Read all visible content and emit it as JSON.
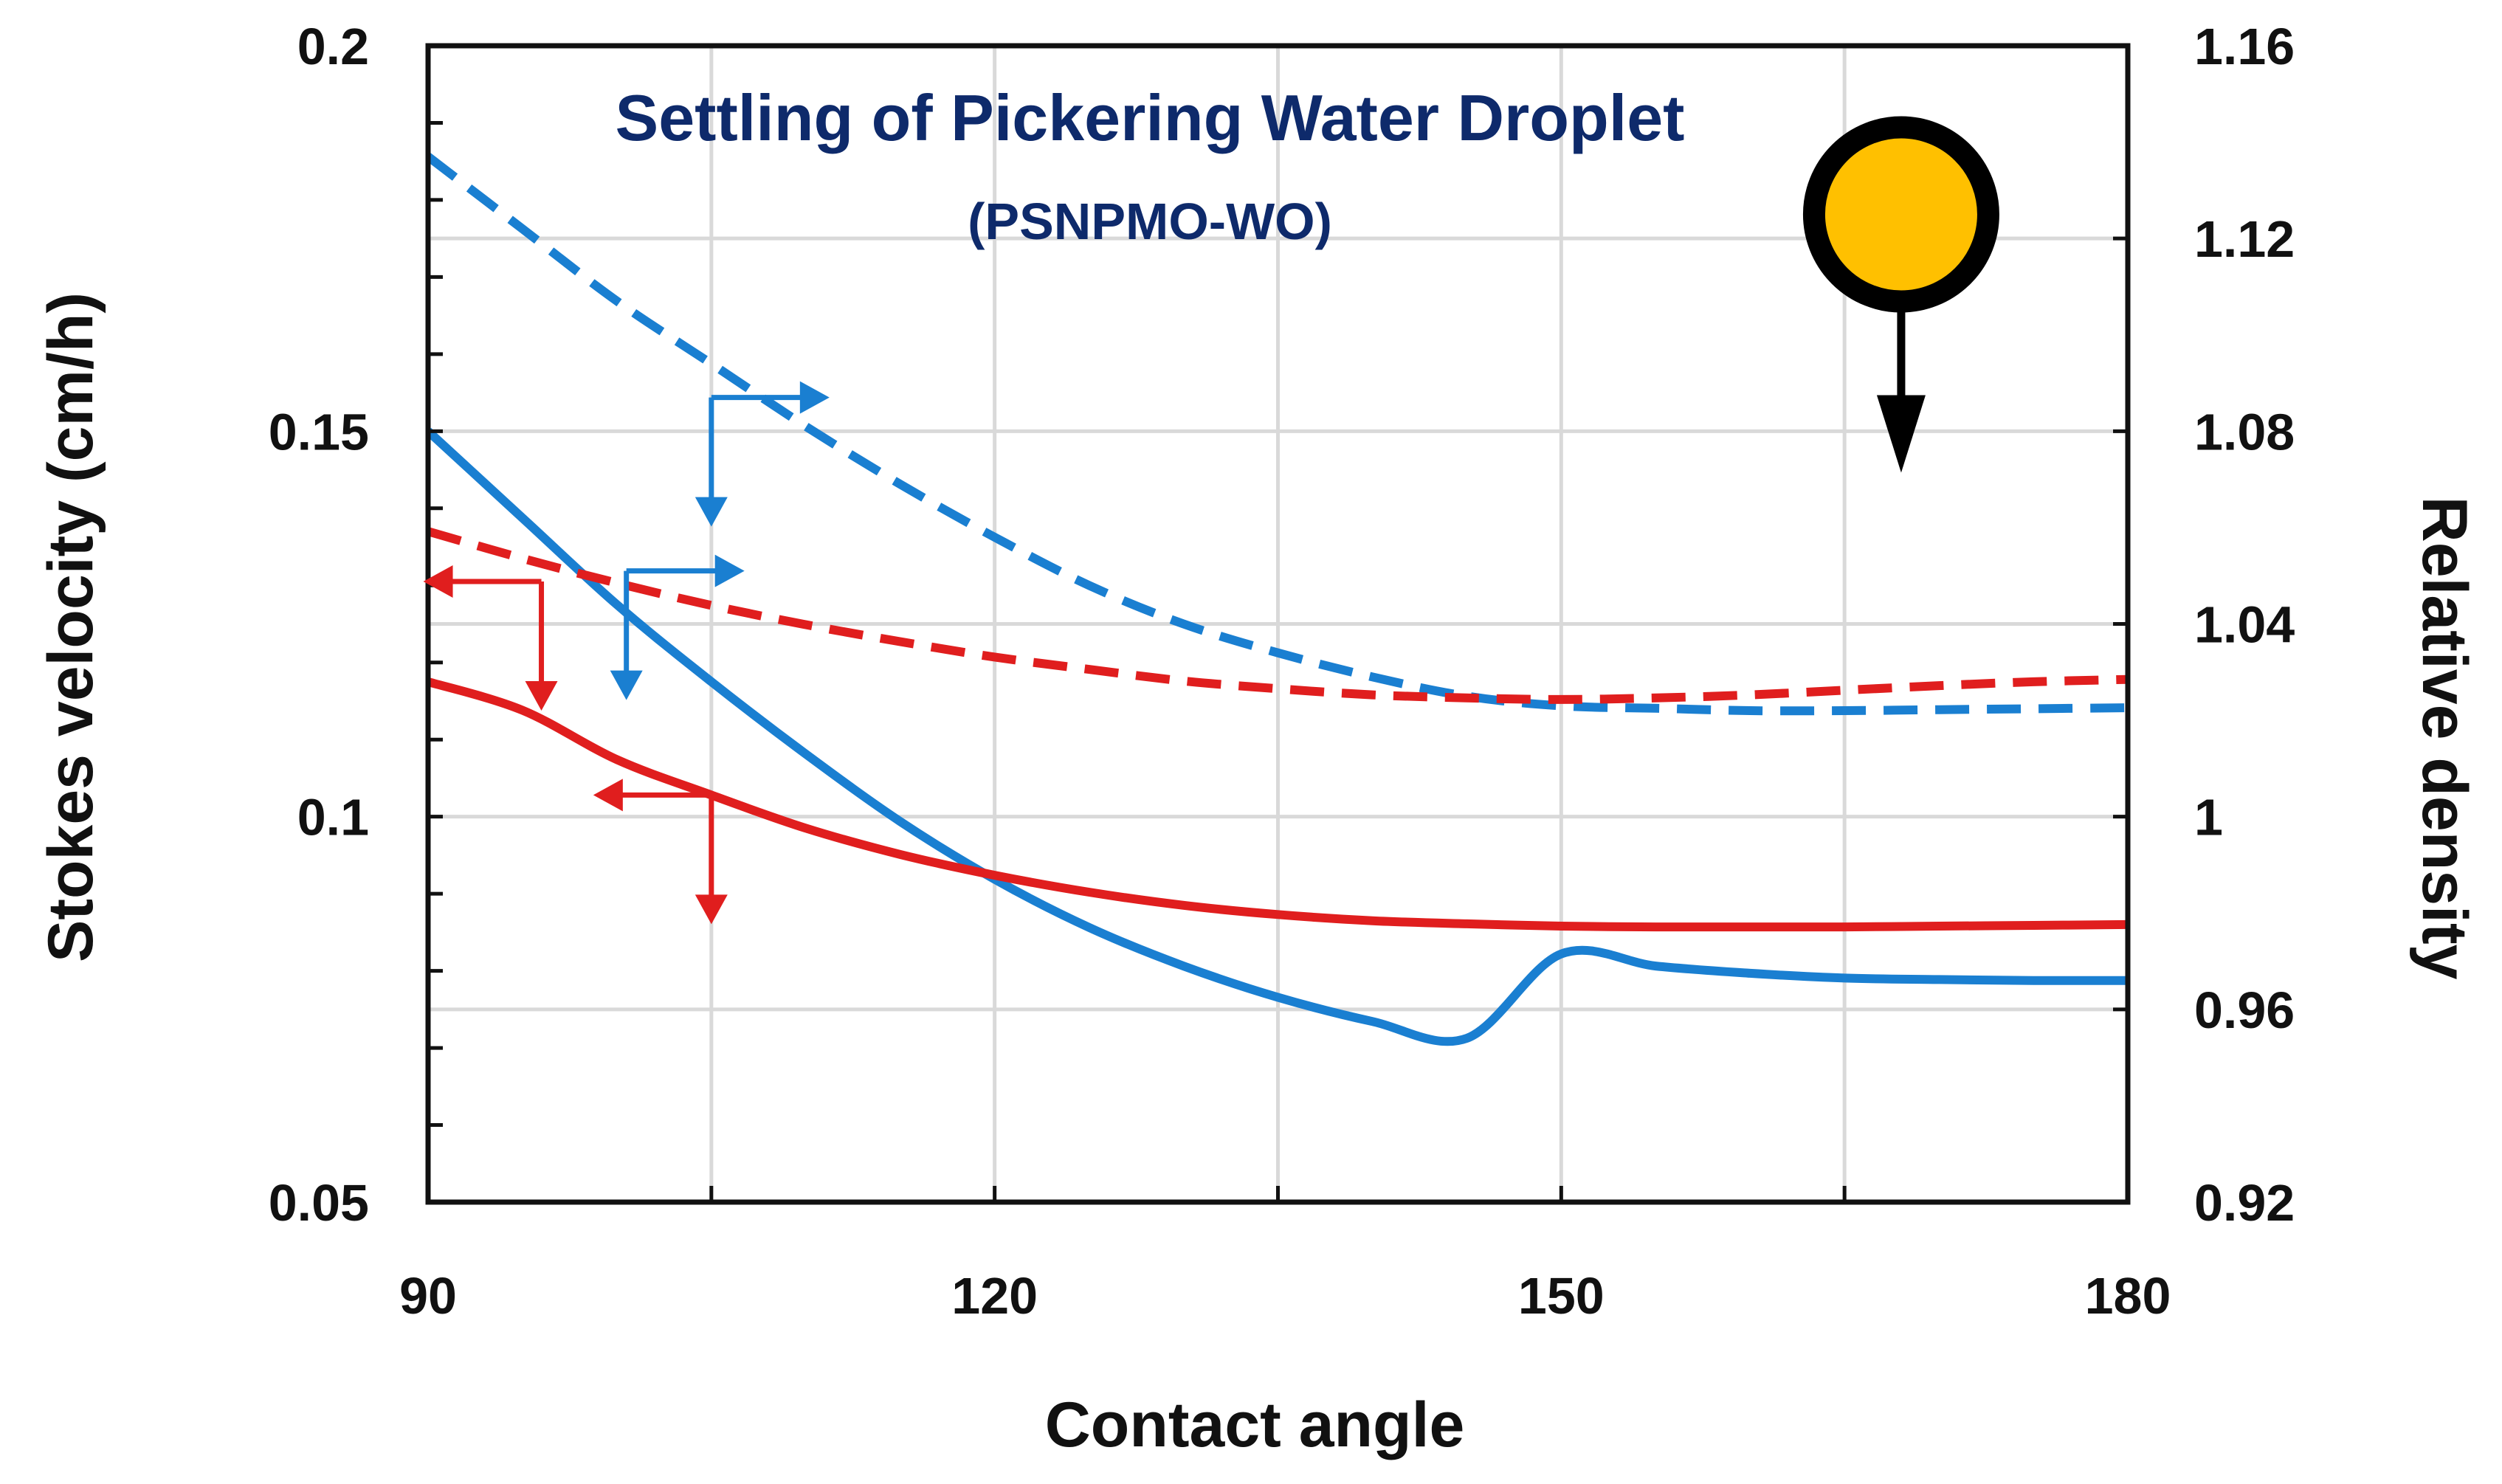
{
  "chart_data": {
    "type": "line",
    "title": "Settling of Pickering Water Droplet",
    "subtitle": "(PSNPMO-WO)",
    "xlabel": "Contact angle",
    "ylabel_left": "Stokes velocity (cm/h)",
    "ylabel_right": "Relative density",
    "xlim": [
      90,
      180
    ],
    "ylim_left": [
      0.05,
      0.2
    ],
    "ylim_right": [
      0.92,
      1.16
    ],
    "x_ticks": [
      90,
      120,
      150,
      180
    ],
    "x_tick_labels": [
      "90",
      "120",
      "150",
      "180"
    ],
    "y_left_ticks": [
      0.05,
      0.1,
      0.15,
      0.2
    ],
    "y_left_tick_labels": [
      "0.05",
      "0.1",
      "0.15",
      "0.2"
    ],
    "y_right_ticks": [
      0.92,
      0.96,
      1.0,
      1.04,
      1.08,
      1.12,
      1.16
    ],
    "y_right_tick_labels": [
      "0.92",
      "0.96",
      "1",
      "1.04",
      "1.08",
      "1.12",
      "1.16"
    ],
    "grid": true,
    "colors": {
      "blue": "#1a7fd1",
      "red": "#e01e1e",
      "title": "#0e2a6b",
      "droplet": "#ffc000"
    },
    "series": [
      {
        "name": "Relative density (solid blue)",
        "axis": "right",
        "color": "#1a7fd1",
        "style": "solid",
        "x": [
          90,
          95,
          100,
          105,
          110,
          115,
          120,
          125,
          130,
          135,
          140,
          145,
          150,
          155,
          160,
          165,
          170,
          175,
          180
        ],
        "y": [
          1.08,
          1.062,
          1.044,
          1.028,
          1.013,
          0.999,
          0.987,
          0.977,
          0.969,
          0.9625,
          0.9575,
          0.954,
          0.9715,
          0.969,
          0.9675,
          0.9665,
          0.9662,
          0.966,
          0.966
        ]
      },
      {
        "name": "Relative density (dashed blue)",
        "axis": "right",
        "color": "#1a7fd1",
        "style": "dashed",
        "x": [
          90,
          95,
          100,
          105,
          110,
          115,
          120,
          125,
          130,
          135,
          140,
          145,
          150,
          155,
          160,
          165,
          170,
          175,
          180
        ],
        "y": [
          1.137,
          1.122,
          1.107,
          1.094,
          1.081,
          1.069,
          1.058,
          1.048,
          1.04,
          1.034,
          1.029,
          1.025,
          1.023,
          1.0225,
          1.022,
          1.022,
          1.0222,
          1.0224,
          1.0226
        ]
      },
      {
        "name": "Stokes velocity (solid red)",
        "axis": "left",
        "color": "#e01e1e",
        "style": "solid",
        "x": [
          90,
          95,
          100,
          105,
          110,
          115,
          120,
          125,
          130,
          135,
          140,
          145,
          150,
          155,
          160,
          165,
          170,
          175,
          180
        ],
        "y": [
          0.1175,
          0.1138,
          0.1074,
          0.1028,
          0.0985,
          0.0951,
          0.0924,
          0.0902,
          0.0885,
          0.0873,
          0.0865,
          0.0861,
          0.0858,
          0.0857,
          0.0857,
          0.0857,
          0.0858,
          0.0859,
          0.086
        ]
      },
      {
        "name": "Stokes velocity (dashed red)",
        "axis": "left",
        "color": "#e01e1e",
        "style": "dashed",
        "x": [
          90,
          95,
          100,
          105,
          110,
          115,
          120,
          125,
          130,
          135,
          140,
          145,
          150,
          155,
          160,
          165,
          170,
          175,
          180
        ],
        "y": [
          0.137,
          0.1335,
          0.1303,
          0.1274,
          0.1249,
          0.1227,
          0.1207,
          0.1191,
          0.1176,
          0.1166,
          0.1158,
          0.1154,
          0.1152,
          0.1154,
          0.1158,
          0.1164,
          0.117,
          0.1175,
          0.1178
        ]
      }
    ],
    "annotations": [
      {
        "type": "axis-arrow",
        "color": "#1a7fd1",
        "points_to": "right",
        "at": {
          "x": 105,
          "y_right": 1.087
        }
      },
      {
        "type": "axis-arrow",
        "color": "#1a7fd1",
        "points_to": "right",
        "at": {
          "x": 100.5,
          "y_right": 1.051
        }
      },
      {
        "type": "axis-arrow",
        "color": "#e01e1e",
        "points_to": "left",
        "at": {
          "x": 96,
          "y_left": 0.1305
        }
      },
      {
        "type": "axis-arrow",
        "color": "#e01e1e",
        "points_to": "left",
        "at": {
          "x": 105,
          "y_left": 0.1028
        }
      },
      {
        "type": "droplet-icon",
        "description": "settling droplet",
        "at": {
          "x": 168,
          "y_right": 1.125
        }
      }
    ]
  }
}
